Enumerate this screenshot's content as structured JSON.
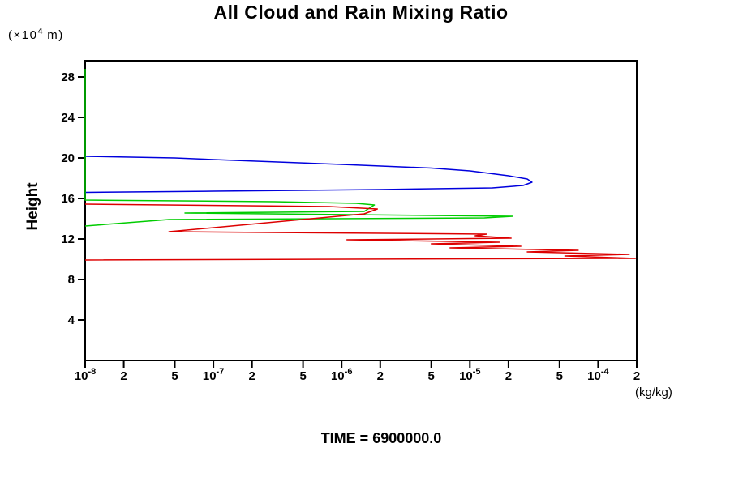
{
  "chart_data": {
    "type": "line",
    "title": "All Cloud and Rain Mixing Ratio",
    "ylabel": "Height",
    "y_unit": {
      "pre": "(×10",
      "sup": "4",
      "post": " m)"
    },
    "xlabel": "(kg/kg)",
    "annotation": "TIME = 6900000.0",
    "x_scale": "log",
    "xlim": [
      1e-08,
      0.0002
    ],
    "ylim": [
      0,
      29.6
    ],
    "grid": false,
    "legend": "none",
    "y_ticks": [
      4,
      8,
      12,
      16,
      20,
      24,
      28
    ],
    "x_ticks": [
      {
        "v": 1e-08,
        "base": "10",
        "exp": "-8"
      },
      {
        "v": 2e-08,
        "base": "2"
      },
      {
        "v": 5e-08,
        "base": "5"
      },
      {
        "v": 1e-07,
        "base": "10",
        "exp": "-7"
      },
      {
        "v": 2e-07,
        "base": "2"
      },
      {
        "v": 5e-07,
        "base": "5"
      },
      {
        "v": 1e-06,
        "base": "10",
        "exp": "-6"
      },
      {
        "v": 2e-06,
        "base": "2"
      },
      {
        "v": 5e-06,
        "base": "5"
      },
      {
        "v": 1e-05,
        "base": "10",
        "exp": "-5"
      },
      {
        "v": 2e-05,
        "base": "2"
      },
      {
        "v": 5e-05,
        "base": "5"
      },
      {
        "v": 0.0001,
        "base": "10",
        "exp": "-4"
      },
      {
        "v": 0.0002,
        "base": "2"
      }
    ],
    "series": [
      {
        "name": "blue",
        "color": "#0000dd",
        "points": [
          [
            1e-08,
            20.16
          ],
          [
            5e-08,
            20.0
          ],
          [
            1e-07,
            19.84
          ],
          [
            1e-06,
            19.36
          ],
          [
            5e-06,
            19.0
          ],
          [
            1e-05,
            18.72
          ],
          [
            2e-05,
            18.24
          ],
          [
            2.8e-05,
            17.92
          ],
          [
            3.05e-05,
            17.6
          ],
          [
            2.6e-05,
            17.28
          ],
          [
            1.5e-05,
            17.04
          ],
          [
            2e-06,
            16.88
          ],
          [
            1e-07,
            16.72
          ],
          [
            1e-08,
            16.6
          ]
        ]
      },
      {
        "name": "green",
        "color": "#00cc00",
        "points": [
          [
            1e-08,
            28.8
          ],
          [
            1e-08,
            15.84
          ],
          [
            3e-07,
            15.68
          ],
          [
            1.3e-06,
            15.52
          ],
          [
            1.8e-06,
            15.36
          ],
          [
            1.5e-06,
            14.72
          ],
          [
            6e-08,
            14.56
          ],
          [
            2.15e-05,
            14.24
          ],
          [
            1.3e-05,
            14.08
          ],
          [
            4.5e-08,
            13.92
          ],
          [
            1e-08,
            13.28
          ]
        ]
      },
      {
        "name": "red",
        "color": "#dd0000",
        "points": [
          [
            1e-08,
            15.44
          ],
          [
            8e-07,
            15.2
          ],
          [
            1.9e-06,
            14.96
          ],
          [
            1.5e-06,
            14.48
          ],
          [
            4.5e-08,
            12.72
          ],
          [
            1.35e-05,
            12.48
          ],
          [
            1.1e-05,
            12.32
          ],
          [
            2.1e-05,
            12.08
          ],
          [
            1.1e-06,
            11.92
          ],
          [
            1.7e-05,
            11.68
          ],
          [
            5e-06,
            11.52
          ],
          [
            2.5e-05,
            11.28
          ],
          [
            7e-06,
            11.12
          ],
          [
            7e-05,
            10.88
          ],
          [
            2.8e-05,
            10.72
          ],
          [
            0.000175,
            10.48
          ],
          [
            5.5e-05,
            10.32
          ],
          [
            0.000195,
            10.08
          ],
          [
            1e-08,
            9.92
          ]
        ]
      }
    ]
  }
}
